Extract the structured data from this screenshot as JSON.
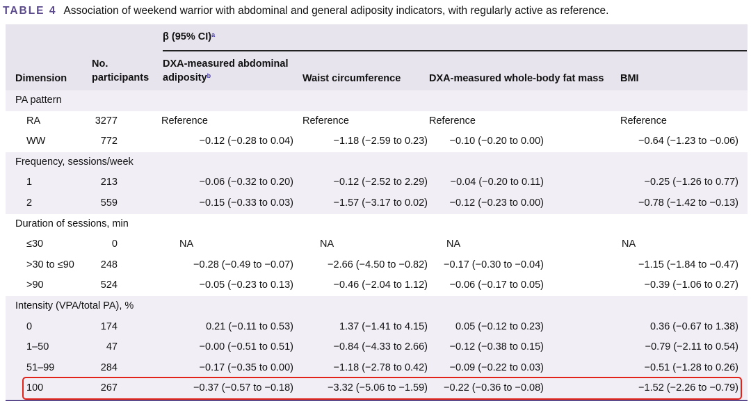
{
  "caption": {
    "label": "TABLE 4",
    "text": "Association of weekend warrior with abdominal and general adiposity indicators, with regularly active as reference."
  },
  "header": {
    "beta_label": "β (95% CI)",
    "beta_sup": "a",
    "dimension": "Dimension",
    "no_line1": "No.",
    "no_line2": "participants",
    "abdominal_line1": "DXA-measured abdominal",
    "abdominal_line2": "adiposity",
    "abdominal_sup": "b",
    "waist": "Waist circumference",
    "fatmass": "DXA-measured whole-body fat mass",
    "bmi": "BMI"
  },
  "rows": [
    {
      "label": "PA pattern",
      "section": true
    },
    {
      "label": "RA",
      "n": "3277",
      "abd": "Reference",
      "waist": "Reference",
      "fat": "Reference",
      "bmi": "Reference"
    },
    {
      "label": "WW",
      "n": "772",
      "abd": "−0.12 (−0.28 to 0.04)",
      "waist": "−1.18 (−2.59 to 0.23)",
      "fat": "−0.10 (−0.20 to 0.00)",
      "bmi": "−0.64 (−1.23 to −0.06)"
    },
    {
      "label": "Frequency, sessions/week",
      "section": true
    },
    {
      "label": "1",
      "n": "213",
      "abd": "−0.06 (−0.32 to 0.20)",
      "waist": "−0.12 (−2.52 to 2.29)",
      "fat": "−0.04 (−0.20 to 0.11)",
      "bmi": "−0.25 (−1.26 to 0.77)"
    },
    {
      "label": "2",
      "n": "559",
      "abd": "−0.15 (−0.33 to 0.03)",
      "waist": "−1.57 (−3.17 to 0.02)",
      "fat": "−0.12 (−0.23 to 0.00)",
      "bmi": "−0.78 (−1.42 to −0.13)"
    },
    {
      "label": "Duration of sessions, min",
      "section": true
    },
    {
      "label": "≤30",
      "n": "0",
      "abd": "NA",
      "waist": "NA",
      "fat": "NA",
      "bmi": "NA"
    },
    {
      "label": ">30 to ≤90",
      "n": "248",
      "abd": "−0.28 (−0.49 to −0.07)",
      "waist": "−2.66 (−4.50 to −0.82)",
      "fat": "−0.17 (−0.30 to −0.04)",
      "bmi": "−1.15 (−1.84 to −0.47)"
    },
    {
      "label": ">90",
      "n": "524",
      "abd": "−0.05 (−0.23 to 0.13)",
      "waist": "−0.46 (−2.04 to 1.12)",
      "fat": "−0.06 (−0.17 to 0.05)",
      "bmi": "−0.39 (−1.06 to 0.27)"
    },
    {
      "label": "Intensity (VPA/total PA), %",
      "section": true
    },
    {
      "label": "0",
      "n": "174",
      "abd": "0.21 (−0.11 to 0.53)",
      "waist": "1.37 (−1.41 to 4.15)",
      "fat": "0.05 (−0.12 to 0.23)",
      "bmi": "0.36 (−0.67 to 1.38)"
    },
    {
      "label": "1–50",
      "n": "47",
      "abd": "−0.00 (−0.51 to 0.51)",
      "waist": "−0.84 (−4.33 to 2.66)",
      "fat": "−0.12 (−0.38 to 0.15)",
      "bmi": "−0.79 (−2.11 to 0.54)"
    },
    {
      "label": "51–99",
      "n": "284",
      "abd": "−0.17 (−0.35 to 0.00)",
      "waist": "−1.18 (−2.78 to 0.42)",
      "fat": "−0.09 (−0.22 to 0.03)",
      "bmi": "−0.51 (−1.28 to 0.26)"
    },
    {
      "label": "100",
      "n": "267",
      "abd": "−0.37 (−0.57 to −0.18)",
      "waist": "−3.32 (−5.06 to −1.59)",
      "fat": "−0.22 (−0.36 to −0.08)",
      "bmi": "−1.52 (−2.26 to −0.79)"
    }
  ],
  "colors": {
    "header_bg": "#e8e4ee",
    "section_bg": "#f1eef5",
    "label_purple": "#5b4a8c",
    "highlight_red": "#e2231a"
  }
}
